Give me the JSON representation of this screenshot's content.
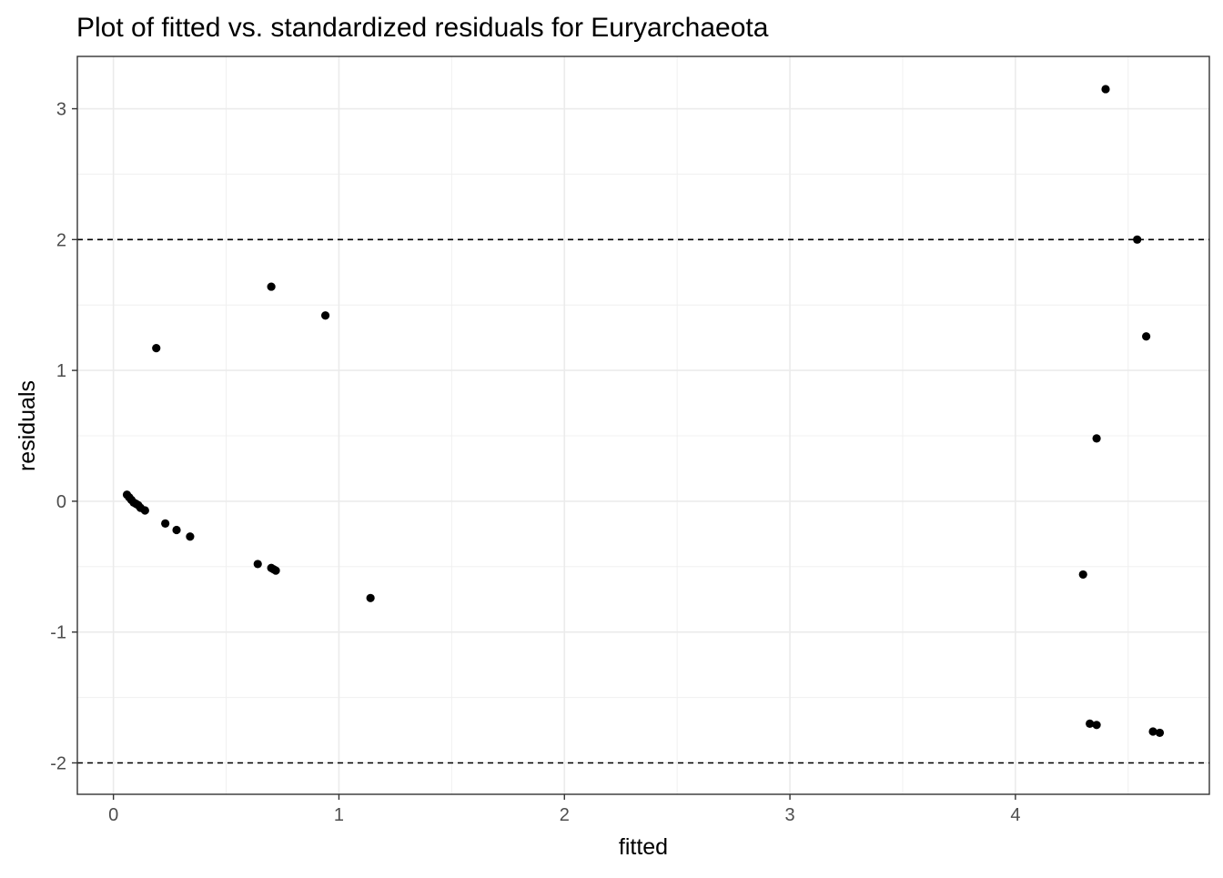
{
  "chart_data": {
    "type": "scatter",
    "title": "Plot of fitted vs. standardized residuals for Euryarchaeota",
    "xlabel": "fitted",
    "ylabel": "residuals",
    "xlim": [
      -0.16,
      4.86
    ],
    "ylim": [
      -2.24,
      3.4
    ],
    "x_ticks": [
      0,
      1,
      2,
      3,
      4
    ],
    "y_ticks": [
      -2,
      -1,
      0,
      1,
      2,
      3
    ],
    "x_tick_labels": [
      "0",
      "1",
      "2",
      "3",
      "4"
    ],
    "y_tick_labels": [
      "-2",
      "-1",
      "0",
      "1",
      "2",
      "3"
    ],
    "grid": true,
    "legend": "none",
    "reference_lines": [
      {
        "y": 2,
        "style": "dashed",
        "color": "#000000"
      },
      {
        "y": -2,
        "style": "dashed",
        "color": "#000000"
      }
    ],
    "point_color": "#000000",
    "points": [
      {
        "x": 0.06,
        "y": 0.05
      },
      {
        "x": 0.07,
        "y": 0.03
      },
      {
        "x": 0.08,
        "y": 0.01
      },
      {
        "x": 0.09,
        "y": -0.01
      },
      {
        "x": 0.1,
        "y": -0.02
      },
      {
        "x": 0.11,
        "y": -0.03
      },
      {
        "x": 0.12,
        "y": -0.05
      },
      {
        "x": 0.14,
        "y": -0.07
      },
      {
        "x": 0.19,
        "y": 1.17
      },
      {
        "x": 0.23,
        "y": -0.17
      },
      {
        "x": 0.28,
        "y": -0.22
      },
      {
        "x": 0.34,
        "y": -0.27
      },
      {
        "x": 0.64,
        "y": -0.48
      },
      {
        "x": 0.7,
        "y": 1.64
      },
      {
        "x": 0.7,
        "y": -0.51
      },
      {
        "x": 0.71,
        "y": -0.52
      },
      {
        "x": 0.72,
        "y": -0.53
      },
      {
        "x": 0.94,
        "y": 1.42
      },
      {
        "x": 1.14,
        "y": -0.74
      },
      {
        "x": 4.3,
        "y": -0.56
      },
      {
        "x": 4.33,
        "y": -1.7
      },
      {
        "x": 4.36,
        "y": -1.71
      },
      {
        "x": 4.36,
        "y": 0.48
      },
      {
        "x": 4.4,
        "y": 3.15
      },
      {
        "x": 4.54,
        "y": 2.0
      },
      {
        "x": 4.58,
        "y": 1.26
      },
      {
        "x": 4.61,
        "y": -1.76
      },
      {
        "x": 4.64,
        "y": -1.77
      }
    ]
  }
}
